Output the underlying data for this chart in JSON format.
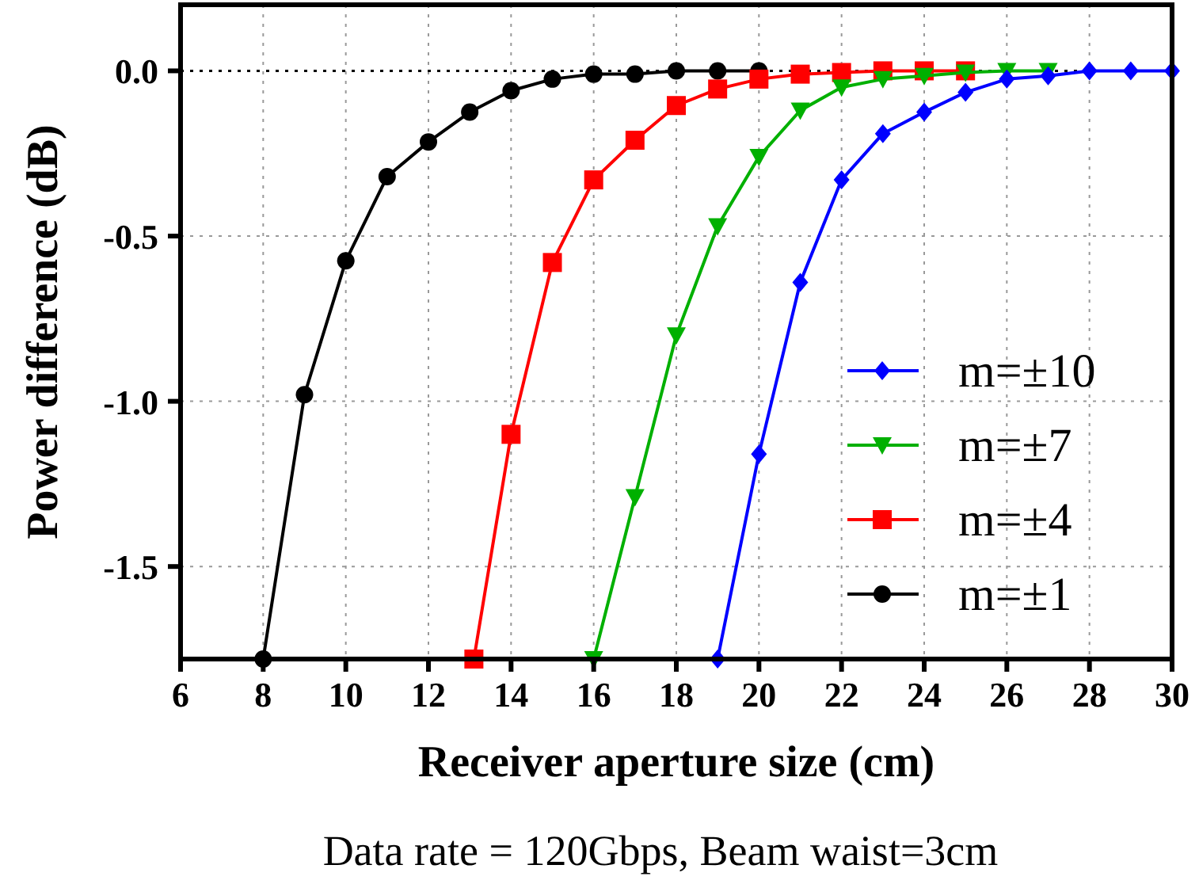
{
  "chart_data": {
    "type": "line",
    "xlabel": "Receiver aperture size (cm)",
    "ylabel": "Power difference (dB)",
    "annotations": [
      "Data rate = 120Gbps, Beam waist=3cm"
    ],
    "xlim": [
      6,
      30
    ],
    "xticks": [
      6,
      8,
      10,
      12,
      14,
      16,
      18,
      20,
      22,
      24,
      26,
      28,
      30
    ],
    "ylim": [
      -1.78,
      0.2
    ],
    "yticks": [
      {
        "value": 0,
        "label": "0.0"
      },
      {
        "value": -0.5,
        "label": "-0.5"
      },
      {
        "value": -1,
        "label": "-1.0"
      },
      {
        "value": -1.5,
        "label": "-1.5"
      }
    ],
    "grid": true,
    "legend": "bottom right",
    "ref_lines": [
      {
        "axis": "y",
        "value": 0,
        "color": "#000000",
        "line_style": "dotted"
      }
    ],
    "series": [
      {
        "name": "m=±10",
        "color": "#0000ff",
        "marker": "diamond",
        "x": [
          19,
          20,
          21,
          22,
          23,
          24,
          25,
          26,
          27,
          28,
          29,
          30
        ],
        "values": [
          -1.78,
          -1.16,
          -0.64,
          -0.33,
          -0.19,
          -0.125,
          -0.065,
          -0.025,
          -0.015,
          0,
          0,
          0
        ]
      },
      {
        "name": "m=±7",
        "color": "#00b000",
        "marker": "triangle",
        "x": [
          16,
          17,
          18,
          19,
          20,
          21,
          22,
          23,
          24,
          25,
          26,
          27
        ],
        "values": [
          -1.78,
          -1.29,
          -0.8,
          -0.47,
          -0.26,
          -0.12,
          -0.05,
          -0.025,
          -0.015,
          -0.005,
          0,
          0
        ]
      },
      {
        "name": "m=±4",
        "color": "#ff0000",
        "marker": "square",
        "x": [
          13.1,
          14,
          15,
          16,
          17,
          18,
          19,
          20,
          21,
          22,
          23,
          24,
          25
        ],
        "values": [
          -1.78,
          -1.1,
          -0.58,
          -0.33,
          -0.21,
          -0.105,
          -0.055,
          -0.025,
          -0.01,
          -0.005,
          0,
          0,
          0
        ]
      },
      {
        "name": "m=±1",
        "color": "#000000",
        "marker": "circle",
        "x": [
          8,
          9,
          10,
          11,
          12,
          13,
          14,
          15,
          16,
          17,
          18,
          19,
          20
        ],
        "values": [
          -1.78,
          -0.98,
          -0.575,
          -0.32,
          -0.215,
          -0.125,
          -0.06,
          -0.025,
          -0.01,
          -0.01,
          0,
          0,
          0
        ]
      }
    ]
  }
}
